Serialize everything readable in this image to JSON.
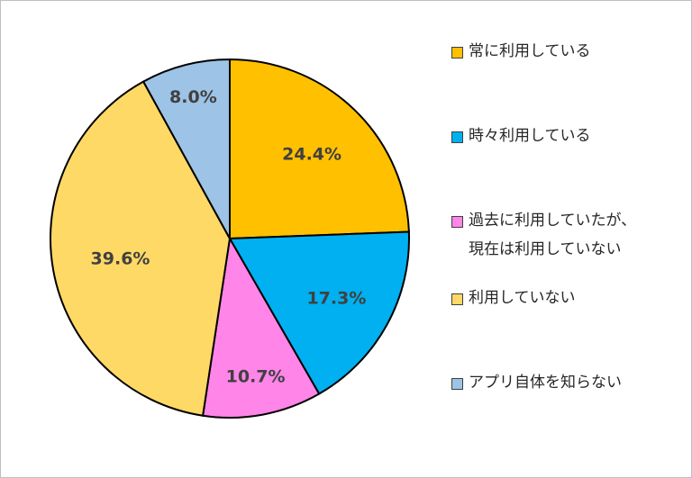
{
  "chart_data": {
    "type": "pie",
    "title": "",
    "start_angle_deg": 0,
    "direction": "clockwise",
    "slices": [
      {
        "label": "常に利用している",
        "value": 24.4,
        "value_label": "24.4%",
        "color": "#FFC000"
      },
      {
        "label": "時々利用している",
        "value": 17.3,
        "value_label": "17.3%",
        "color": "#00B0F0"
      },
      {
        "label": "過去に利用していたが、\n現在は利用していない",
        "value": 10.7,
        "value_label": "10.7%",
        "color": "#FF85E8"
      },
      {
        "label": "利用していない",
        "value": 39.6,
        "value_label": "39.6%",
        "color": "#FFD966"
      },
      {
        "label": "アプリ自体を知らない",
        "value": 8.0,
        "value_label": "8.0%",
        "color": "#9DC3E6"
      }
    ],
    "legend_position": "right"
  }
}
